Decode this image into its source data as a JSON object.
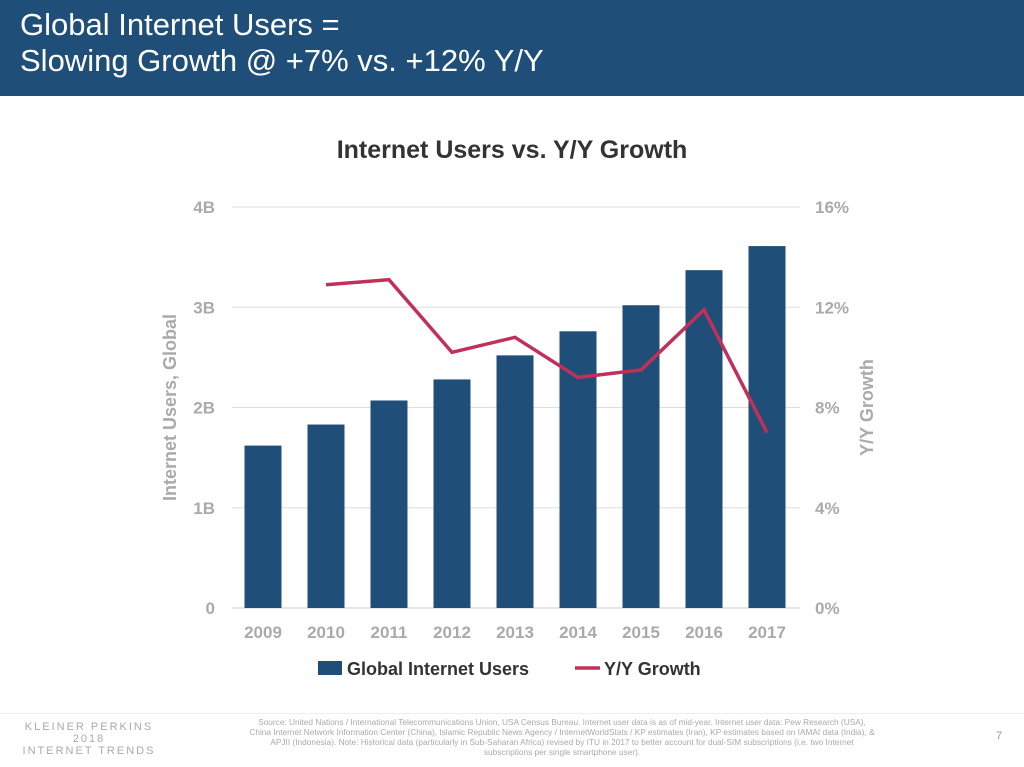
{
  "header": {
    "line1": "Global Internet Users =",
    "line2": "Slowing Growth @ +7% vs. +12% Y/Y"
  },
  "chart_data": {
    "type": "bar+line",
    "title": "Internet Users vs. Y/Y Growth",
    "categories": [
      "2009",
      "2010",
      "2011",
      "2012",
      "2013",
      "2014",
      "2015",
      "2016",
      "2017"
    ],
    "series": [
      {
        "name": "Global Internet Users",
        "type": "bar",
        "axis": "left",
        "unit": "B",
        "values": [
          1.62,
          1.83,
          2.07,
          2.28,
          2.52,
          2.76,
          3.02,
          3.37,
          3.61
        ]
      },
      {
        "name": "Y/Y Growth",
        "type": "line",
        "axis": "right",
        "unit": "%",
        "values": [
          null,
          12.9,
          13.1,
          10.2,
          10.8,
          9.2,
          9.5,
          11.9,
          7.0
        ]
      }
    ],
    "ylabel": "Internet Users, Global",
    "y2label": "Y/Y Growth",
    "ylim": [
      0,
      4
    ],
    "y2lim": [
      0,
      16
    ],
    "yticks": [
      "0",
      "1B",
      "2B",
      "3B",
      "4B"
    ],
    "y2ticks": [
      "0%",
      "4%",
      "8%",
      "12%",
      "16%"
    ],
    "grid": true,
    "legend": "bottom",
    "colors": {
      "bar": "#1f4e78",
      "line": "#c2305a"
    }
  },
  "footer": {
    "logo": [
      "KLEINER PERKINS",
      "2018",
      "INTERNET TRENDS"
    ],
    "source": "Source: United Nations / International Telecommunications Union, USA Census Bureau. Internet user data is as of mid-year. Internet user data: Pew Research (USA), China Internet Network Information Center (China), Islamic Republic News Agency / InternetWorldStats / KP estimates (Iran), KP estimates based on IAMAI data (India), & APJII (Indonesia). Note: Historical data (particularly in Sub-Saharan Africa) revised by ITU in 2017 to better account for dual-SIM subscriptions (i.e. two Internet subscriptions per single smartphone user).",
    "page": "7"
  }
}
